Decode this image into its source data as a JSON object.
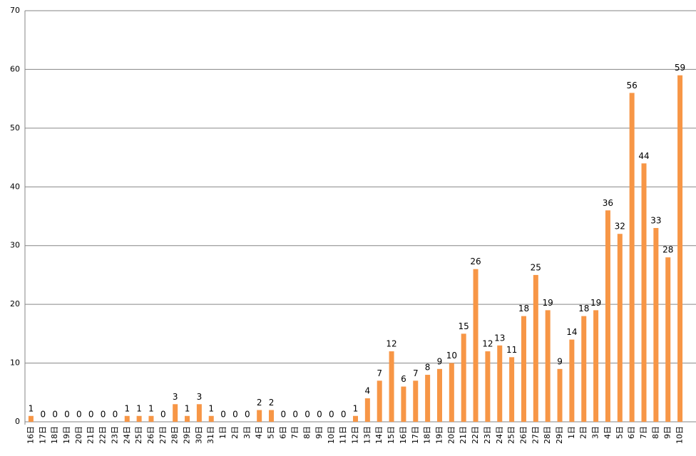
{
  "chart_data": {
    "type": "bar",
    "categories": [
      "16日",
      "17日",
      "18日",
      "19日",
      "20日",
      "21日",
      "22日",
      "23日",
      "24日",
      "25日",
      "26日",
      "27日",
      "28日",
      "29日",
      "30日",
      "31日",
      "1日",
      "2日",
      "3日",
      "4日",
      "5日",
      "6日",
      "7日",
      "8日",
      "9日",
      "10日",
      "11日",
      "12日",
      "13日",
      "14日",
      "15日",
      "16日",
      "17日",
      "18日",
      "19日",
      "20日",
      "21日",
      "22日",
      "23日",
      "24日",
      "25日",
      "26日",
      "27日",
      "28日",
      "29日",
      "1日",
      "2日",
      "3日",
      "4日",
      "5日",
      "6日",
      "7日",
      "8日",
      "9日",
      "10日"
    ],
    "values": [
      1,
      0,
      0,
      0,
      0,
      0,
      0,
      0,
      1,
      1,
      1,
      0,
      3,
      1,
      3,
      1,
      0,
      0,
      0,
      2,
      2,
      0,
      0,
      0,
      0,
      0,
      0,
      1,
      4,
      7,
      12,
      6,
      7,
      8,
      9,
      10,
      15,
      26,
      12,
      13,
      11,
      18,
      25,
      19,
      9,
      14,
      18,
      19,
      36,
      32,
      56,
      44,
      33,
      28,
      59
    ],
    "color": "#f79646",
    "ylim": [
      0,
      70
    ],
    "yticks": [
      0,
      10,
      20,
      30,
      40,
      50,
      60,
      70
    ],
    "grid": true
  }
}
